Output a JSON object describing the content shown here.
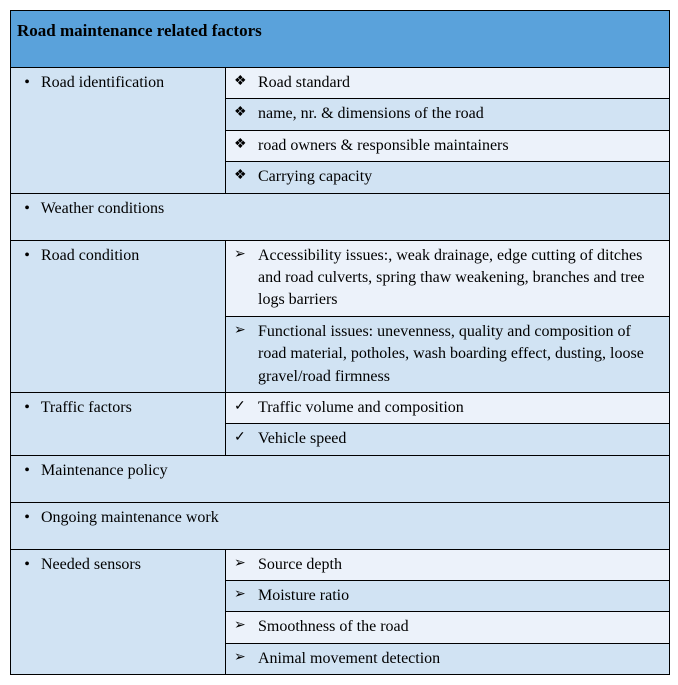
{
  "colors": {
    "header_bg": "#5aa2db",
    "row_light": "#ecf2fa",
    "row_dark": "#d1e3f3",
    "left_bg": "#d1e3f3",
    "full_bg": "#d1e3f3"
  },
  "fonts": {
    "header_size_pt": 13,
    "body_size_pt": 12,
    "family": "Times New Roman"
  },
  "bullets": {
    "dot": "•",
    "clover": "❖",
    "arrow": "➢",
    "check": "✓"
  },
  "title": "Road maintenance related factors",
  "sections": {
    "road_identification": {
      "label": "Road identification",
      "items": [
        " Road standard",
        "name, nr. & dimensions of the road",
        "road owners & responsible maintainers",
        "Carrying capacity"
      ]
    },
    "weather_conditions": {
      "label": "Weather conditions"
    },
    "road_condition": {
      "label": "Road condition",
      "items": [
        "Accessibility issues:, weak drainage,  edge cutting of ditches and road culverts, spring thaw weakening, branches and tree logs barriers",
        "Functional issues: unevenness, quality and composition of road material, potholes, wash boarding effect, dusting, loose gravel/road firmness"
      ]
    },
    "traffic_factors": {
      "label": "Traffic factors",
      "items": [
        "Traffic volume and composition",
        "Vehicle speed"
      ]
    },
    "maintenance_policy": {
      "label": "Maintenance policy"
    },
    "ongoing_maintenance_work": {
      "label": "Ongoing maintenance work"
    },
    "needed_sensors": {
      "label": "Needed sensors",
      "items": [
        "Source depth",
        "Moisture ratio",
        "Smoothness of the road",
        "Animal movement detection"
      ]
    }
  }
}
